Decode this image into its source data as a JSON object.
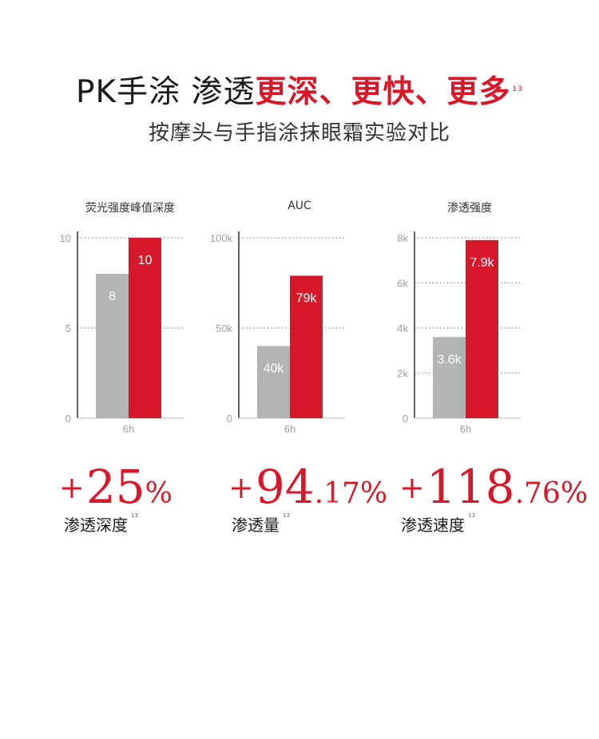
{
  "header": {
    "title_plain": "PK手涂 渗透",
    "title_highlight": "更深、更快、更多",
    "title_note": "13",
    "subtitle": "按摩头与手指涂抹眼霜实验对比"
  },
  "colors": {
    "accent": "#d7182a",
    "baseline": "#b3b3b3",
    "axis": "#888888"
  },
  "chart_data": [
    {
      "type": "bar",
      "title": "荧光强度峰值深度",
      "categories": [
        "6h"
      ],
      "series": [
        {
          "values": [
            8
          ],
          "labels": [
            "8"
          ],
          "color": "#b3b3b3"
        },
        {
          "values": [
            10
          ],
          "labels": [
            "10"
          ],
          "color": "#d7182a"
        }
      ],
      "ylim": [
        0,
        10
      ],
      "yticks": [
        0,
        5,
        10
      ],
      "ytick_labels": [
        "0",
        "5",
        "10"
      ],
      "grid": "dotted"
    },
    {
      "type": "bar",
      "title": "AUC",
      "categories": [
        "6h"
      ],
      "series": [
        {
          "values": [
            40000
          ],
          "labels": [
            "40k"
          ],
          "color": "#b3b3b3"
        },
        {
          "values": [
            79000
          ],
          "labels": [
            "79k"
          ],
          "color": "#d7182a"
        }
      ],
      "ylim": [
        0,
        100000
      ],
      "yticks": [
        0,
        50000,
        100000
      ],
      "ytick_labels": [
        "0",
        "50k",
        "100k"
      ],
      "grid": "dotted"
    },
    {
      "type": "bar",
      "title": "渗透强度",
      "categories": [
        "6h"
      ],
      "series": [
        {
          "values": [
            3600
          ],
          "labels": [
            "3.6k"
          ],
          "color": "#b3b3b3"
        },
        {
          "values": [
            7900
          ],
          "labels": [
            "7.9k"
          ],
          "color": "#d7182a"
        }
      ],
      "ylim": [
        0,
        8000
      ],
      "yticks": [
        0,
        2000,
        4000,
        6000,
        8000
      ],
      "ytick_labels": [
        "0",
        "2k",
        "4k",
        "6k",
        "8k"
      ],
      "grid": "dotted"
    }
  ],
  "stats": [
    {
      "sign": "+",
      "int": "25",
      "dec": "%",
      "label": "渗透深度",
      "note": "13"
    },
    {
      "sign": "+",
      "int": "94",
      "dec": ".17%",
      "label": "渗透量",
      "note": "13"
    },
    {
      "sign": "+",
      "int": "118",
      "dec": ".76%",
      "label": "渗透速度",
      "note": "13"
    }
  ]
}
